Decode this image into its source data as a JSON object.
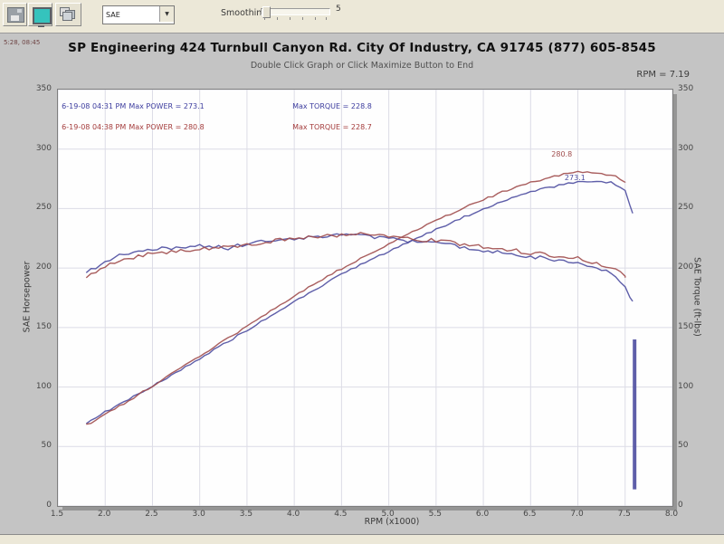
{
  "toolbar": {
    "dropdown_value": "SAE",
    "smoothing_label": "Smoothing",
    "smoothing_value": "5"
  },
  "header": {
    "corner_text": "5:28, 08:45",
    "title": "SP Engineering 424 Turnbull Canyon Rd. City Of Industry, CA 91745 (877) 605-8545",
    "subtitle": "Double Click Graph or Click Maximize Button to End",
    "rpm_readout": "RPM = 7.19"
  },
  "chart_data": {
    "type": "line",
    "title": "SP Engineering dyno runs",
    "xlabel": "RPM (x1000)",
    "ylabel_left": "SAE Horsepower",
    "ylabel_right": "SAE Torque (ft-lbs)",
    "xlim": [
      1.5,
      8.0
    ],
    "ylim": [
      0,
      350
    ],
    "x_ticks": [
      1.5,
      2.0,
      2.5,
      3.0,
      3.5,
      4.0,
      4.5,
      5.0,
      5.5,
      6.0,
      6.5,
      7.0,
      7.5,
      8.0
    ],
    "y_ticks": [
      0,
      50,
      100,
      150,
      200,
      250,
      300,
      350
    ],
    "grid": true,
    "colors": {
      "run1": "#4d4da0",
      "run2": "#a04d4d",
      "grid": "#dcdce6"
    },
    "series": [
      {
        "name": "power-run1",
        "color": "#4d4da0",
        "points": [
          [
            1.8,
            70
          ],
          [
            2.0,
            79
          ],
          [
            2.3,
            92
          ],
          [
            2.6,
            105
          ],
          [
            3.0,
            124
          ],
          [
            3.4,
            143
          ],
          [
            3.8,
            162
          ],
          [
            4.2,
            181
          ],
          [
            4.6,
            199
          ],
          [
            5.0,
            214
          ],
          [
            5.4,
            229
          ],
          [
            5.8,
            243
          ],
          [
            6.2,
            256
          ],
          [
            6.6,
            266
          ],
          [
            6.9,
            271
          ],
          [
            7.1,
            273.1
          ],
          [
            7.35,
            272
          ],
          [
            7.5,
            266
          ],
          [
            7.58,
            246
          ]
        ],
        "max_label": "273.1"
      },
      {
        "name": "power-run2",
        "color": "#a04d4d",
        "points": [
          [
            1.8,
            68
          ],
          [
            2.0,
            77
          ],
          [
            2.3,
            91
          ],
          [
            2.6,
            106
          ],
          [
            3.0,
            126
          ],
          [
            3.4,
            146
          ],
          [
            3.8,
            166
          ],
          [
            4.2,
            186
          ],
          [
            4.6,
            204
          ],
          [
            5.0,
            220
          ],
          [
            5.4,
            236
          ],
          [
            5.8,
            251
          ],
          [
            6.2,
            264
          ],
          [
            6.5,
            272
          ],
          [
            6.8,
            278
          ],
          [
            7.0,
            280.8
          ],
          [
            7.2,
            280
          ],
          [
            7.4,
            277
          ],
          [
            7.5,
            272
          ]
        ],
        "max_label": "280.8"
      },
      {
        "name": "torque-run1",
        "color": "#4d4da0",
        "points": [
          [
            1.8,
            196
          ],
          [
            2.0,
            206
          ],
          [
            2.2,
            212
          ],
          [
            2.4,
            214
          ],
          [
            2.7,
            217
          ],
          [
            3.0,
            219
          ],
          [
            3.3,
            217
          ],
          [
            3.6,
            222
          ],
          [
            3.9,
            224
          ],
          [
            4.2,
            226
          ],
          [
            4.5,
            228.8
          ],
          [
            4.8,
            226
          ],
          [
            5.1,
            224
          ],
          [
            5.4,
            222
          ],
          [
            5.7,
            219
          ],
          [
            6.0,
            215
          ],
          [
            6.3,
            212
          ],
          [
            6.6,
            209
          ],
          [
            6.9,
            206
          ],
          [
            7.1,
            203
          ],
          [
            7.35,
            197
          ],
          [
            7.5,
            183
          ],
          [
            7.58,
            172
          ]
        ],
        "max_label": "228.8"
      },
      {
        "name": "torque-run2",
        "color": "#a04d4d",
        "points": [
          [
            1.8,
            192
          ],
          [
            2.0,
            202
          ],
          [
            2.2,
            208
          ],
          [
            2.5,
            212
          ],
          [
            2.8,
            215
          ],
          [
            3.1,
            217
          ],
          [
            3.4,
            219
          ],
          [
            3.7,
            222
          ],
          [
            4.0,
            225
          ],
          [
            4.3,
            227
          ],
          [
            4.6,
            228.7
          ],
          [
            4.9,
            227
          ],
          [
            5.2,
            225
          ],
          [
            5.5,
            223
          ],
          [
            5.8,
            220
          ],
          [
            6.1,
            217
          ],
          [
            6.4,
            214
          ],
          [
            6.7,
            211
          ],
          [
            7.0,
            208
          ],
          [
            7.2,
            204
          ],
          [
            7.4,
            199
          ],
          [
            7.5,
            192
          ]
        ],
        "max_label": "228.7"
      },
      {
        "name": "tach-dropout-run1",
        "color": "#4d4da0",
        "vertical": true,
        "width": 4,
        "points": [
          [
            7.6,
            140
          ],
          [
            7.6,
            14
          ]
        ]
      }
    ],
    "annotations": [
      {
        "name": "peak-power-run2-label",
        "text": "280.8",
        "x": 6.72,
        "y": 296,
        "color": "#a04d4d"
      },
      {
        "name": "peak-power-run1-label",
        "text": "273.1",
        "x": 6.86,
        "y": 276.5,
        "color": "#4d4da0"
      },
      {
        "name": "legend-run1-datetime",
        "text": "6-19-08 04:31 PM",
        "x": 1.54,
        "y": 336,
        "color": "#3c3c9e"
      },
      {
        "name": "legend-run1-max-power",
        "text": "Max POWER = 273.1",
        "x": 2.25,
        "y": 336,
        "color": "#3c3c9e"
      },
      {
        "name": "legend-run1-max-torque",
        "text": "Max TORQUE = 228.8",
        "x": 3.98,
        "y": 336,
        "color": "#3c3c9e"
      },
      {
        "name": "legend-run2-datetime",
        "text": "6-19-08 04:38 PM",
        "x": 1.54,
        "y": 319,
        "color": "#a43c3c"
      },
      {
        "name": "legend-run2-max-power",
        "text": "Max POWER = 280.8",
        "x": 2.25,
        "y": 319,
        "color": "#a43c3c"
      },
      {
        "name": "legend-run2-max-torque",
        "text": "Max TORQUE = 228.7",
        "x": 3.98,
        "y": 319,
        "color": "#a43c3c"
      }
    ]
  }
}
